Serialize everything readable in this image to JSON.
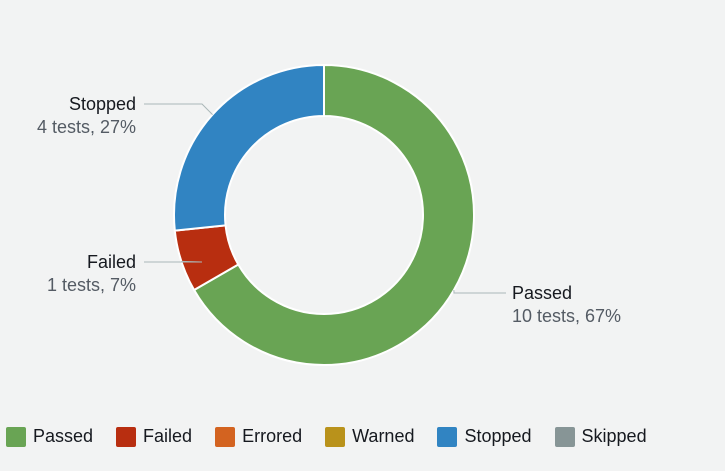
{
  "chart_data": {
    "type": "pie",
    "variant": "donut",
    "slices": [
      {
        "name": "Passed",
        "value": 10,
        "percent": 67,
        "detail": "10 tests, 67%",
        "color": "#69a454"
      },
      {
        "name": "Failed",
        "value": 1,
        "percent": 7,
        "detail": "1 tests, 7%",
        "color": "#b82e10"
      },
      {
        "name": "Stopped",
        "value": 4,
        "percent": 27,
        "detail": "4 tests, 27%",
        "color": "#3184c2"
      }
    ],
    "legend": [
      {
        "label": "Passed",
        "color": "#69a454"
      },
      {
        "label": "Failed",
        "color": "#b82e10"
      },
      {
        "label": "Errored",
        "color": "#d36320"
      },
      {
        "label": "Warned",
        "color": "#b9921b"
      },
      {
        "label": "Stopped",
        "color": "#3184c2"
      },
      {
        "label": "Skipped",
        "color": "#879596"
      }
    ],
    "legend_position": "bottom"
  }
}
